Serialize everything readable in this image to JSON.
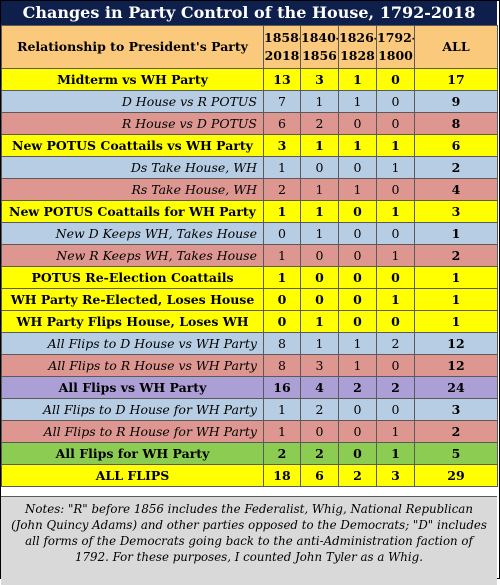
{
  "title": "Changes in Party Control of the House, 1792-2018",
  "header": {
    "label": "Relationship to President's Party",
    "cols": [
      "1858-\n2018",
      "1840-\n1856",
      "1826-\n1828",
      "1792-\n1800",
      "ALL"
    ]
  },
  "rows": [
    {
      "label": "Midterm vs WH Party",
      "values": [
        "13",
        "3",
        "1",
        "0",
        "17"
      ]
    },
    {
      "label": "D House vs R POTUS",
      "values": [
        "7",
        "1",
        "1",
        "0",
        "9"
      ]
    },
    {
      "label": "R House vs D POTUS",
      "values": [
        "6",
        "2",
        "0",
        "0",
        "8"
      ]
    },
    {
      "label": "New POTUS Coattails vs WH Party",
      "values": [
        "3",
        "1",
        "1",
        "1",
        "6"
      ]
    },
    {
      "label": "Ds Take House, WH",
      "values": [
        "1",
        "0",
        "0",
        "1",
        "2"
      ]
    },
    {
      "label": "Rs Take House, WH",
      "values": [
        "2",
        "1",
        "1",
        "0",
        "4"
      ]
    },
    {
      "label": "New POTUS Coattails for WH Party",
      "values": [
        "1",
        "1",
        "0",
        "1",
        "3"
      ]
    },
    {
      "label": "New D Keeps WH, Takes House",
      "values": [
        "0",
        "1",
        "0",
        "0",
        "1"
      ]
    },
    {
      "label": "New R Keeps WH, Takes House",
      "values": [
        "1",
        "0",
        "0",
        "1",
        "2"
      ]
    },
    {
      "label": "POTUS Re-Election Coattails",
      "values": [
        "1",
        "0",
        "0",
        "0",
        "1"
      ]
    },
    {
      "label": "WH Party Re-Elected, Loses House",
      "values": [
        "0",
        "0",
        "0",
        "1",
        "1"
      ]
    },
    {
      "label": "WH Party Flips House, Loses WH",
      "values": [
        "0",
        "1",
        "0",
        "0",
        "1"
      ]
    },
    {
      "label": "All Flips to D House vs WH Party",
      "values": [
        "8",
        "1",
        "1",
        "2",
        "12"
      ]
    },
    {
      "label": "All Flips to R House vs WH Party",
      "values": [
        "8",
        "3",
        "1",
        "0",
        "12"
      ]
    },
    {
      "label": "All Flips vs WH Party",
      "values": [
        "16",
        "4",
        "2",
        "2",
        "24"
      ]
    },
    {
      "label": "All Flips to D House for WH Party",
      "values": [
        "1",
        "2",
        "0",
        "0",
        "3"
      ]
    },
    {
      "label": "All Flips to R House for WH Party",
      "values": [
        "1",
        "0",
        "0",
        "1",
        "2"
      ]
    },
    {
      "label": "All Flips for WH Party",
      "values": [
        "2",
        "2",
        "0",
        "1",
        "5"
      ]
    },
    {
      "label": "ALL FLIPS",
      "values": [
        "18",
        "6",
        "2",
        "3",
        "29"
      ]
    }
  ],
  "notes": "Notes: \"R\" before 1856 includes the Federalist, Whig, National Republican (John Quincy Adams) and other parties opposed to the Democrats; \"D\" includes all forms of the Democrats going back to the anti-Administration faction of 1792. For these purposes, I counted John Tyler as a Whig.",
  "colors": {
    "title_bg": "#0d1f4a",
    "header_bg": "#fbc97c",
    "yellow": "#ffff00",
    "blue": "#b7cde3",
    "red": "#dd9690",
    "purple": "#ab9fd6",
    "green": "#8ccc52",
    "notes_bg": "#d9d9d9"
  }
}
